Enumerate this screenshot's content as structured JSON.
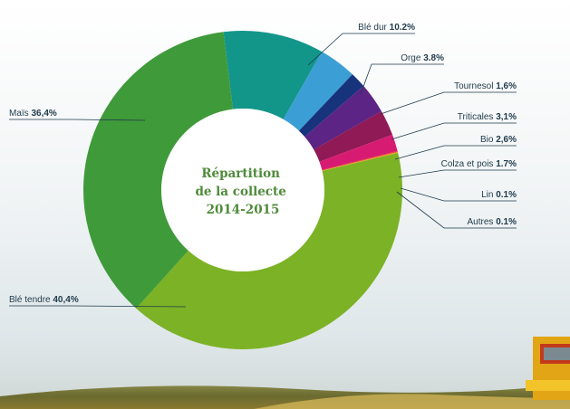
{
  "chart_data": {
    "type": "pie",
    "title_lines": [
      "Répartition",
      "de la collecte",
      "2014-2015"
    ],
    "slices": [
      {
        "name": "Blé dur",
        "value": 10.2,
        "value_label": "10.2%",
        "color": "#13968a"
      },
      {
        "name": "Orge",
        "value": 3.8,
        "value_label": "3.8%",
        "color": "#3b9fd6"
      },
      {
        "name": "Tournesol",
        "value": 1.6,
        "value_label": "1,6%",
        "color": "#16337c"
      },
      {
        "name": "Triticales",
        "value": 3.1,
        "value_label": "3,1%",
        "color": "#5b2485"
      },
      {
        "name": "Bio",
        "value": 2.6,
        "value_label": "2,6%",
        "color": "#8f1a55"
      },
      {
        "name": "Colza et pois",
        "value": 1.7,
        "value_label": "1.7%",
        "color": "#d81b72"
      },
      {
        "name": "Lin",
        "value": 0.1,
        "value_label": "0.1%",
        "color": "#e53a3a"
      },
      {
        "name": "Autres",
        "value": 0.1,
        "value_label": "0.1%",
        "color": "#f0a020"
      },
      {
        "name": "Blé tendre",
        "value": 40.4,
        "value_label": "40,4%",
        "color": "#7cb225"
      },
      {
        "name": "Maïs",
        "value": 36.4,
        "value_label": "36,4%",
        "color": "#3f9a3a"
      }
    ]
  }
}
